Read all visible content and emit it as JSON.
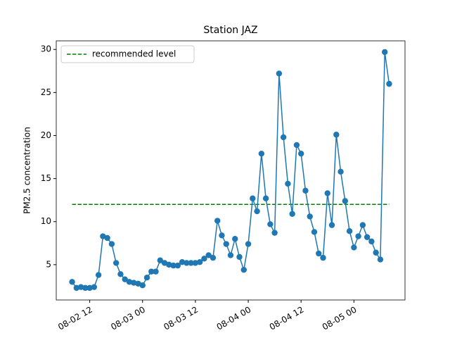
{
  "chart_data": {
    "type": "line",
    "title": "Station JAZ",
    "y_label": "PM2.5 concentration",
    "x": [
      "08-02 08",
      "08-02 09",
      "08-02 10",
      "08-02 11",
      "08-02 12",
      "08-02 13",
      "08-02 14",
      "08-02 15",
      "08-02 16",
      "08-02 17",
      "08-02 18",
      "08-02 19",
      "08-02 20",
      "08-02 21",
      "08-02 22",
      "08-02 23",
      "08-03 00",
      "08-03 01",
      "08-03 02",
      "08-03 03",
      "08-03 04",
      "08-03 05",
      "08-03 06",
      "08-03 07",
      "08-03 08",
      "08-03 09",
      "08-03 10",
      "08-03 11",
      "08-03 12",
      "08-03 13",
      "08-03 14",
      "08-03 15",
      "08-03 16",
      "08-03 17",
      "08-03 18",
      "08-03 19",
      "08-03 20",
      "08-03 21",
      "08-03 22",
      "08-03 23",
      "08-04 00",
      "08-04 01",
      "08-04 02",
      "08-04 03",
      "08-04 04",
      "08-04 05",
      "08-04 06",
      "08-04 07",
      "08-04 08",
      "08-04 09",
      "08-04 10",
      "08-04 11",
      "08-04 12",
      "08-04 13",
      "08-04 14",
      "08-04 15",
      "08-04 16",
      "08-04 17",
      "08-04 18",
      "08-04 19",
      "08-04 20",
      "08-04 21",
      "08-04 22",
      "08-04 23",
      "08-05 00",
      "08-05 01",
      "08-05 02",
      "08-05 03",
      "08-05 04",
      "08-05 05",
      "08-05 06",
      "08-05 07",
      "08-05 08"
    ],
    "series": [
      {
        "color": "#1f77b4",
        "values": [
          3.0,
          2.3,
          2.4,
          2.3,
          2.3,
          2.4,
          3.8,
          8.3,
          8.1,
          7.4,
          5.2,
          3.9,
          3.3,
          3.0,
          2.9,
          2.8,
          2.6,
          3.5,
          4.2,
          4.2,
          5.5,
          5.2,
          5.0,
          4.9,
          4.9,
          5.3,
          5.2,
          5.2,
          5.2,
          5.3,
          5.7,
          6.1,
          5.8,
          10.1,
          8.4,
          7.4,
          6.1,
          8.0,
          5.9,
          4.4,
          7.4,
          12.7,
          11.2,
          17.9,
          12.7,
          9.7,
          8.7,
          27.2,
          19.8,
          14.4,
          10.9,
          18.9,
          17.9,
          13.6,
          10.6,
          8.8,
          6.3,
          5.8,
          13.3,
          9.6,
          20.1,
          15.8,
          12.4,
          8.9,
          7.0,
          8.3,
          9.6,
          8.2,
          7.7,
          6.4,
          5.6,
          29.7,
          26.0
        ]
      }
    ],
    "reference_line": {
      "name": "recommended level",
      "value": 12,
      "color": "green"
    },
    "xticks": [
      "08-02 12",
      "08-03 00",
      "08-03 12",
      "08-04 00",
      "08-04 12",
      "08-05 00"
    ],
    "ylim": [
      0.9,
      31.0
    ],
    "yticks": [
      5,
      10,
      15,
      20,
      25,
      30
    ],
    "legend": "upper left"
  }
}
